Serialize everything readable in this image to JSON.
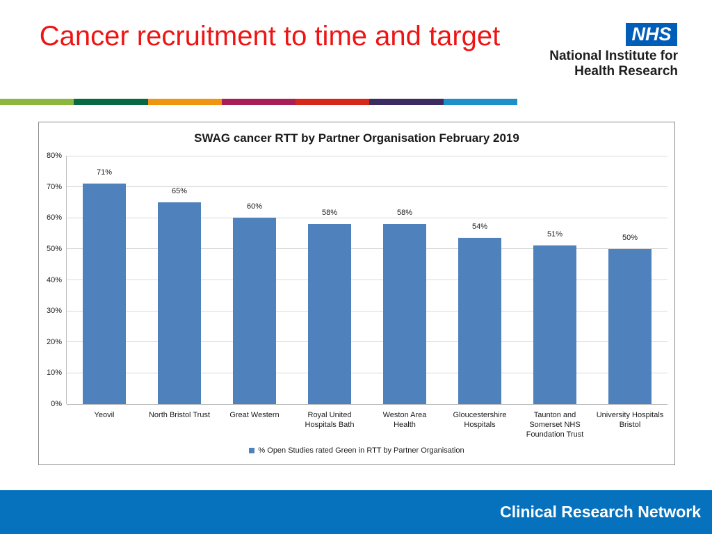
{
  "slide": {
    "title": "Cancer recruitment to time and target",
    "title_color": "#ee1414",
    "logo": {
      "nhs": "NHS",
      "nhs_bg": "#005eb8",
      "org_line1": "National Institute for",
      "org_line2": "Health Research"
    },
    "stripe_colors": [
      "#8cb73f",
      "#076a43",
      "#ee9611",
      "#a81e56",
      "#d5281b",
      "#3b2b61",
      "#1d90c9"
    ],
    "footer": {
      "label": "Clinical Research Network",
      "bg": "#0672be"
    }
  },
  "chart_data": {
    "type": "bar",
    "title": "SWAG cancer RTT by Partner Organisation February 2019",
    "categories": [
      "Yeovil",
      "North Bristol Trust",
      "Great Western",
      "Royal United\nHospitals Bath",
      "Weston Area\nHealth",
      "Gloucestershire\nHospitals",
      "Taunton and\nSomerset NHS\nFoundation Trust",
      "University Hospitals\nBristol"
    ],
    "values": [
      71,
      65,
      60,
      58,
      58,
      54,
      51,
      50
    ],
    "plotted_values": [
      71,
      65,
      60,
      58,
      58,
      53.5,
      51,
      50
    ],
    "value_labels": [
      "71%",
      "65%",
      "60%",
      "58%",
      "58%",
      "54%",
      "51%",
      "50%"
    ],
    "ylabel": "",
    "xlabel": "",
    "ylim": [
      0,
      80
    ],
    "ytick_step": 10,
    "ytick_suffix": "%",
    "grid": true,
    "bar_color": "#4f81bd",
    "legend": [
      "% Open Studies rated Green in RTT by Partner Organisation"
    ],
    "legend_position": "bottom"
  }
}
